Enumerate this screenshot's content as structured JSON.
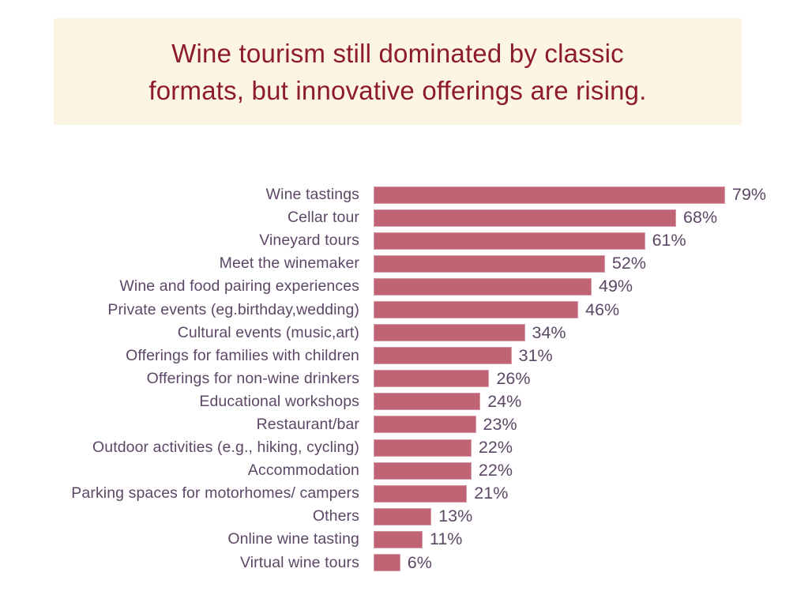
{
  "title": {
    "text": "Wine tourism still dominated by classic formats, but innovative offerings are rising.",
    "lines": [
      "Wine tourism still dominated by classic",
      "formats, but innovative offerings are rising."
    ],
    "text_color": "#8d1b2d",
    "background_color": "#fdf5e4"
  },
  "chart_data": {
    "type": "bar",
    "orientation": "horizontal",
    "title": "Wine tourism still dominated by classic formats, but innovative offerings are rising.",
    "categories": [
      "Wine tastings",
      "Cellar tour",
      "Vineyard tours",
      "Meet the winemaker",
      "Wine and food pairing experiences",
      "Private events (eg.birthday,wedding)",
      "Cultural events (music,art)",
      "Offerings for families with children",
      "Offerings for non-wine drinkers",
      "Educational workshops",
      "Restaurant/bar",
      "Outdoor activities (e.g., hiking, cycling)",
      "Accommodation",
      "Parking spaces for motorhomes/ campers",
      "Others",
      "Online wine tasting",
      "Virtual wine tours"
    ],
    "values": [
      79,
      68,
      61,
      52,
      49,
      46,
      34,
      31,
      26,
      24,
      23,
      22,
      22,
      21,
      13,
      11,
      6
    ],
    "value_suffix": "%",
    "value_labels_position": "outside-end",
    "xlabel": "",
    "ylabel": "",
    "xlim": [
      0,
      100
    ],
    "grid": false,
    "legend": false,
    "bar_color": "#c06374",
    "label_color": "#5d4766"
  }
}
